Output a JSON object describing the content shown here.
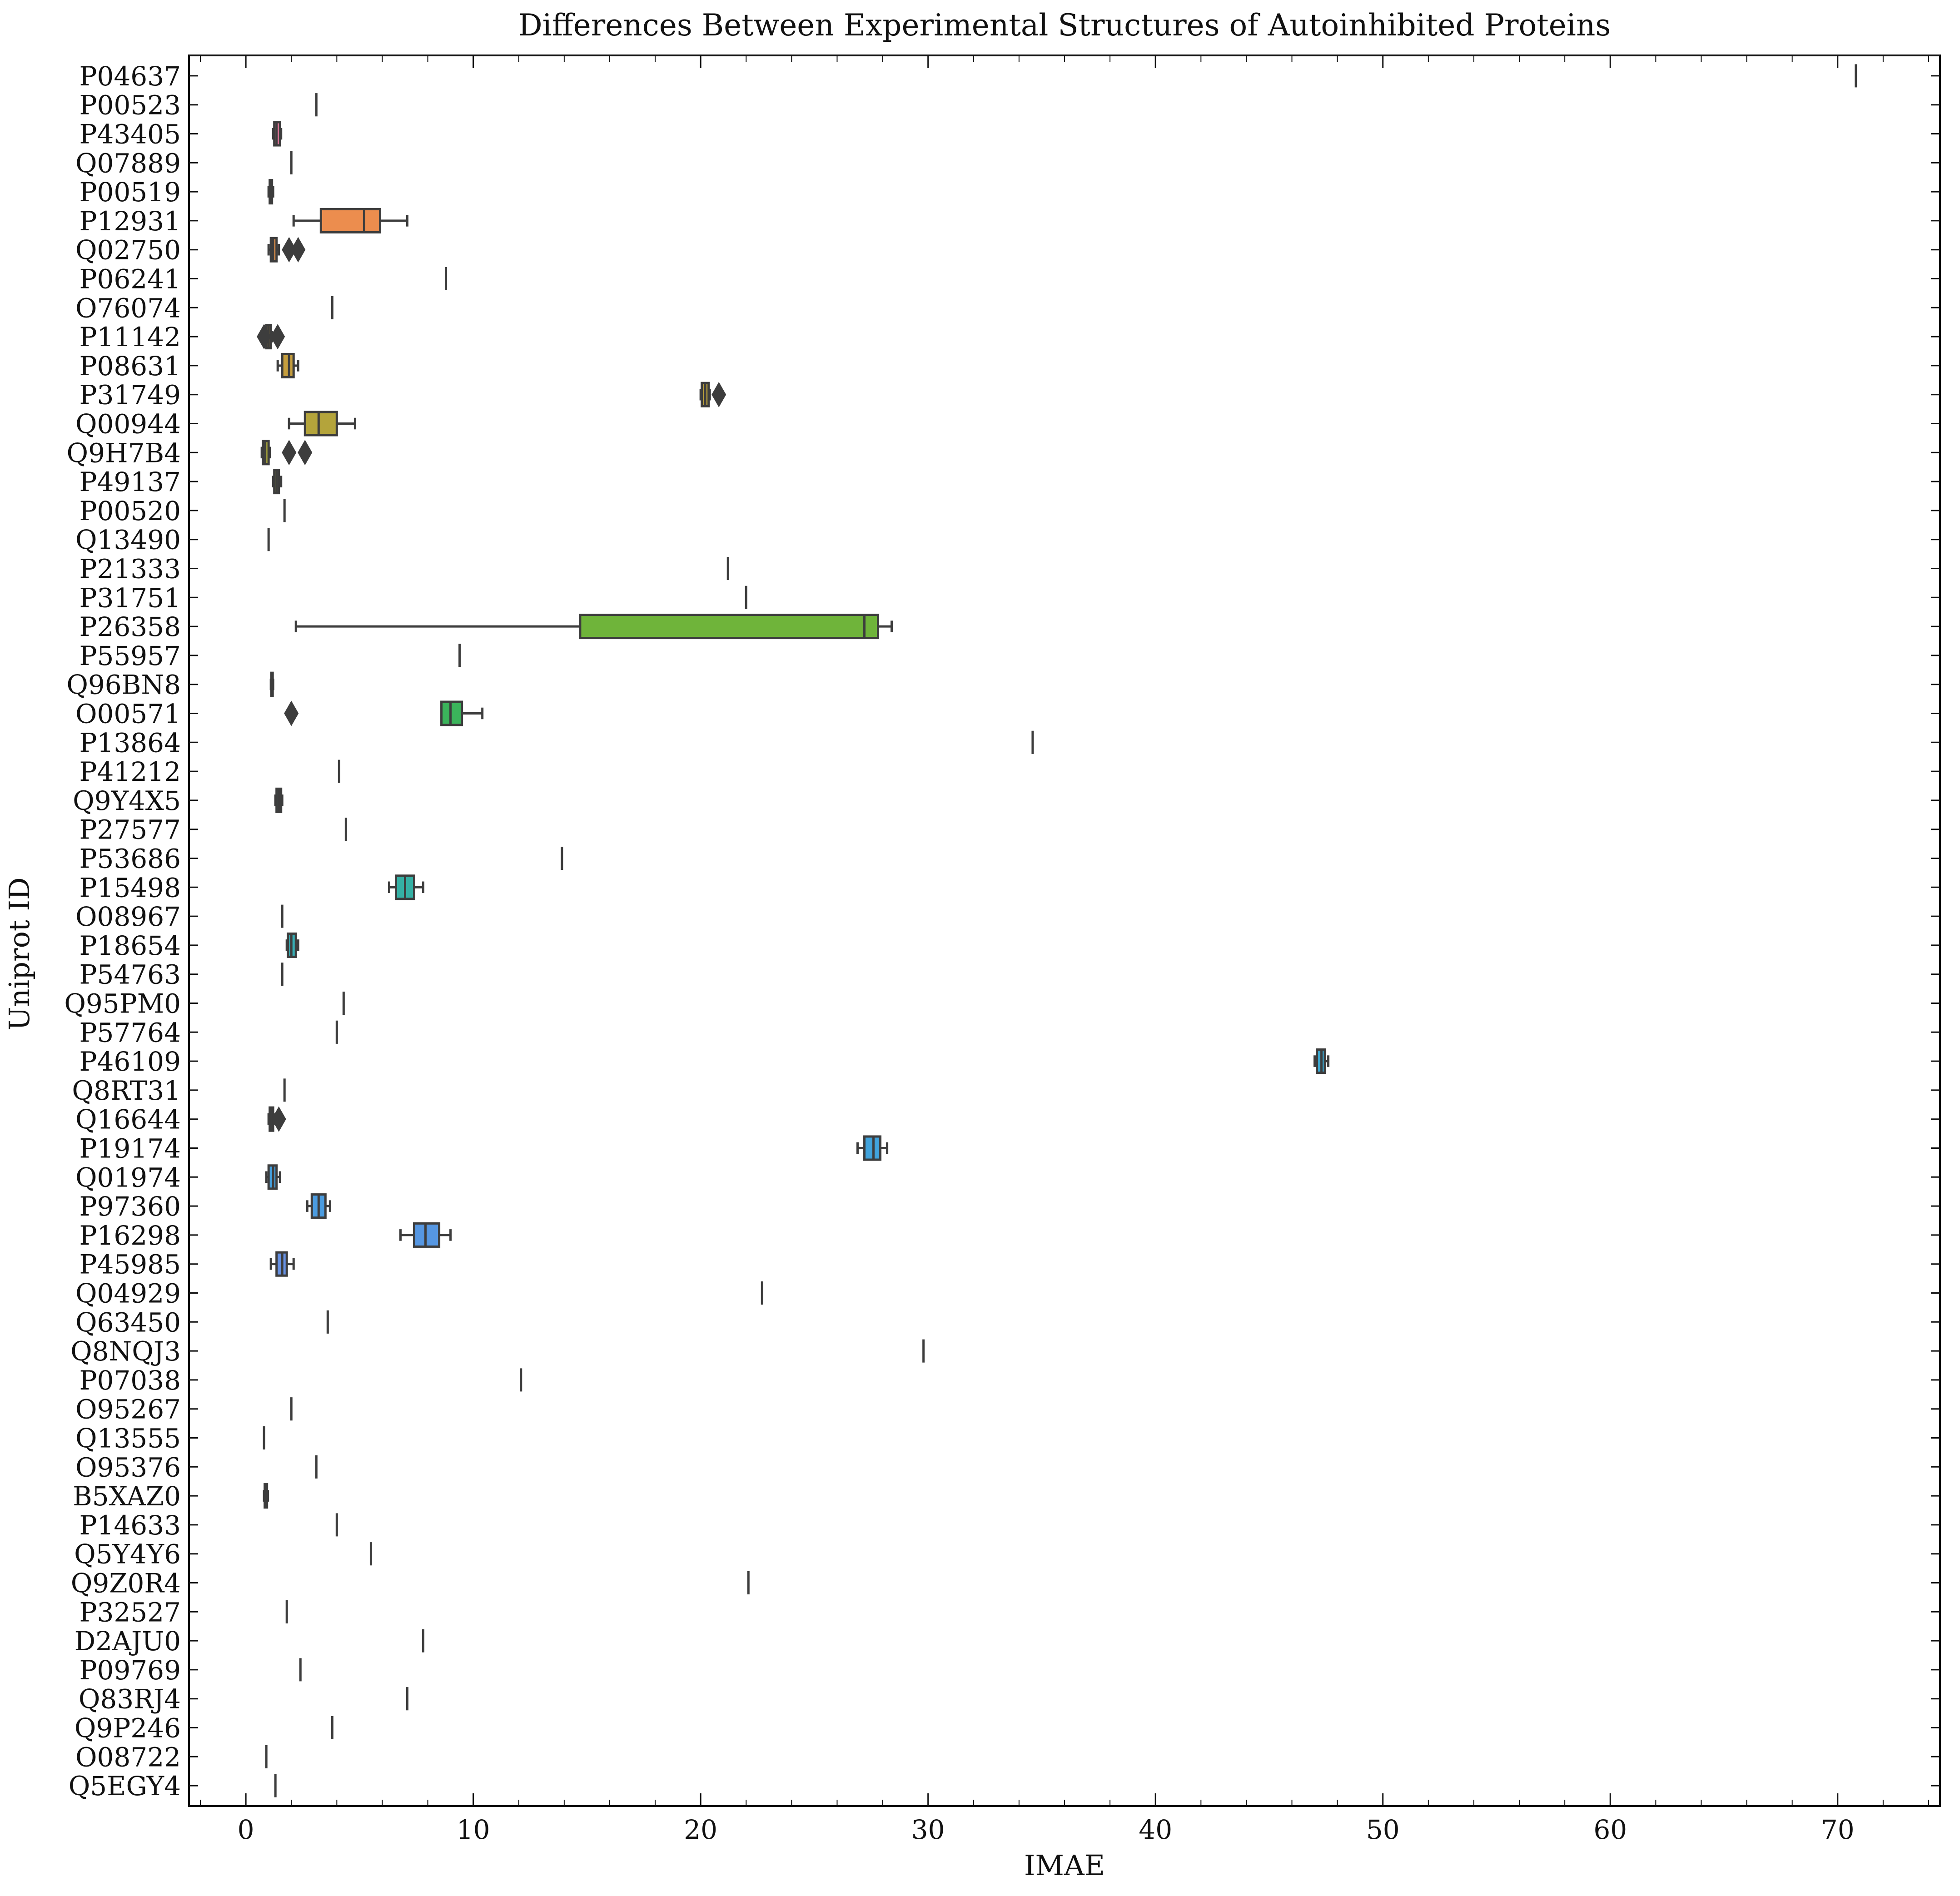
{
  "chart_data": {
    "type": "box",
    "orientation": "horizontal",
    "title": "Differences Between Experimental Structures of Autoinhibited Proteins",
    "xlabel": "IMAE",
    "ylabel": "Uniprot ID",
    "xlim": [
      -2.5,
      74.5
    ],
    "xticks": [
      0,
      10,
      20,
      30,
      40,
      50,
      60,
      70
    ],
    "xtick_labels": [
      "0",
      "10",
      "20",
      "30",
      "40",
      "50",
      "60",
      "70"
    ],
    "grid": false,
    "categories": [
      {
        "id": "P04637",
        "min": 70.8,
        "q1": 70.8,
        "median": 70.8,
        "q3": 70.8,
        "max": 70.8,
        "outliers": [],
        "color": "#3b9ad8"
      },
      {
        "id": "P00523",
        "min": 3.1,
        "q1": 3.1,
        "median": 3.1,
        "q3": 3.1,
        "max": 3.1,
        "outliers": [],
        "color": "#3b9ad8"
      },
      {
        "id": "P43405",
        "min": 1.2,
        "q1": 1.25,
        "median": 1.35,
        "q3": 1.5,
        "max": 1.55,
        "outliers": [],
        "color": "#f07ba3"
      },
      {
        "id": "Q07889",
        "min": 2.0,
        "q1": 2.0,
        "median": 2.0,
        "q3": 2.0,
        "max": 2.0,
        "outliers": [],
        "color": "#f07ba3"
      },
      {
        "id": "P00519",
        "min": 1.0,
        "q1": 1.05,
        "median": 1.1,
        "q3": 1.15,
        "max": 1.2,
        "outliers": [],
        "color": "#f07ba3"
      },
      {
        "id": "P12931",
        "min": 2.1,
        "q1": 3.3,
        "median": 5.2,
        "q3": 5.9,
        "max": 7.1,
        "outliers": [],
        "color": "#ec8d4e"
      },
      {
        "id": "Q02750",
        "min": 1.0,
        "q1": 1.1,
        "median": 1.2,
        "q3": 1.35,
        "max": 1.45,
        "outliers": [
          1.9,
          2.3
        ],
        "color": "#e4924a"
      },
      {
        "id": "P06241",
        "min": 8.8,
        "q1": 8.8,
        "median": 8.8,
        "q3": 8.8,
        "max": 8.8,
        "outliers": [],
        "color": "#d9963f"
      },
      {
        "id": "O76074",
        "min": 3.8,
        "q1": 3.8,
        "median": 3.8,
        "q3": 3.8,
        "max": 3.8,
        "outliers": [],
        "color": "#d49a40"
      },
      {
        "id": "P11142",
        "min": 0.85,
        "q1": 0.9,
        "median": 1.0,
        "q3": 1.1,
        "max": 1.15,
        "outliers": [
          0.8,
          1.4
        ],
        "color": "#cc9c3f"
      },
      {
        "id": "P08631",
        "min": 1.4,
        "q1": 1.6,
        "median": 1.9,
        "q3": 2.1,
        "max": 2.3,
        "outliers": [],
        "color": "#c59e3e"
      },
      {
        "id": "P31749",
        "min": 20.0,
        "q1": 20.05,
        "median": 20.2,
        "q3": 20.35,
        "max": 20.4,
        "outliers": [
          20.8
        ],
        "color": "#bda23c"
      },
      {
        "id": "Q00944",
        "min": 1.9,
        "q1": 2.6,
        "median": 3.2,
        "q3": 4.0,
        "max": 4.8,
        "outliers": [],
        "color": "#b4a43b"
      },
      {
        "id": "Q9H7B4",
        "min": 0.7,
        "q1": 0.75,
        "median": 0.85,
        "q3": 1.0,
        "max": 1.05,
        "outliers": [
          1.9,
          2.6
        ],
        "color": "#aaa73a"
      },
      {
        "id": "P49137",
        "min": 1.2,
        "q1": 1.25,
        "median": 1.35,
        "q3": 1.45,
        "max": 1.55,
        "outliers": [],
        "color": "#a1a939"
      },
      {
        "id": "P00520",
        "min": 1.7,
        "q1": 1.7,
        "median": 1.7,
        "q3": 1.7,
        "max": 1.7,
        "outliers": [],
        "color": "#98ab38"
      },
      {
        "id": "Q13490",
        "min": 1.0,
        "q1": 1.0,
        "median": 1.0,
        "q3": 1.0,
        "max": 1.0,
        "outliers": [],
        "color": "#8ead37"
      },
      {
        "id": "P21333",
        "min": 21.2,
        "q1": 21.2,
        "median": 21.2,
        "q3": 21.2,
        "max": 21.2,
        "outliers": [],
        "color": "#83b037"
      },
      {
        "id": "P31751",
        "min": 22.0,
        "q1": 22.0,
        "median": 22.0,
        "q3": 22.0,
        "max": 22.0,
        "outliers": [],
        "color": "#78b136"
      },
      {
        "id": "P26358",
        "min": 2.2,
        "q1": 14.7,
        "median": 27.2,
        "q3": 27.8,
        "max": 28.4,
        "outliers": [],
        "color": "#6fb43a"
      },
      {
        "id": "P55957",
        "min": 9.4,
        "q1": 9.4,
        "median": 9.4,
        "q3": 9.4,
        "max": 9.4,
        "outliers": [],
        "color": "#5fb744"
      },
      {
        "id": "Q96BN8",
        "min": 1.1,
        "q1": 1.12,
        "median": 1.15,
        "q3": 1.18,
        "max": 1.2,
        "outliers": [],
        "color": "#4fb84f"
      },
      {
        "id": "O00571",
        "min": 8.6,
        "q1": 8.6,
        "median": 9.0,
        "q3": 9.5,
        "max": 10.4,
        "outliers": [
          2.0
        ],
        "color": "#3bb45b"
      },
      {
        "id": "P13864",
        "min": 34.6,
        "q1": 34.6,
        "median": 34.6,
        "q3": 34.6,
        "max": 34.6,
        "outliers": [],
        "color": "#36b36b"
      },
      {
        "id": "P41212",
        "min": 4.1,
        "q1": 4.1,
        "median": 4.1,
        "q3": 4.1,
        "max": 4.1,
        "outliers": [],
        "color": "#35b37a"
      },
      {
        "id": "Q9Y4X5",
        "min": 1.3,
        "q1": 1.35,
        "median": 1.45,
        "q3": 1.55,
        "max": 1.6,
        "outliers": [],
        "color": "#34b386"
      },
      {
        "id": "P27577",
        "min": 4.4,
        "q1": 4.4,
        "median": 4.4,
        "q3": 4.4,
        "max": 4.4,
        "outliers": [],
        "color": "#34b290"
      },
      {
        "id": "P53686",
        "min": 13.9,
        "q1": 13.9,
        "median": 13.9,
        "q3": 13.9,
        "max": 13.9,
        "outliers": [],
        "color": "#35b19a"
      },
      {
        "id": "P15498",
        "min": 6.3,
        "q1": 6.6,
        "median": 7.0,
        "q3": 7.4,
        "max": 7.8,
        "outliers": [],
        "color": "#35b0a4"
      },
      {
        "id": "O08967",
        "min": 1.6,
        "q1": 1.6,
        "median": 1.6,
        "q3": 1.6,
        "max": 1.6,
        "outliers": [],
        "color": "#36afad"
      },
      {
        "id": "P18654",
        "min": 1.8,
        "q1": 1.85,
        "median": 2.0,
        "q3": 2.2,
        "max": 2.3,
        "outliers": [],
        "color": "#37aeb5"
      },
      {
        "id": "P54763",
        "min": 1.6,
        "q1": 1.6,
        "median": 1.6,
        "q3": 1.6,
        "max": 1.6,
        "outliers": [],
        "color": "#38adbd"
      },
      {
        "id": "Q95PM0",
        "min": 4.3,
        "q1": 4.3,
        "median": 4.3,
        "q3": 4.3,
        "max": 4.3,
        "outliers": [],
        "color": "#39acc4"
      },
      {
        "id": "P57764",
        "min": 4.0,
        "q1": 4.0,
        "median": 4.0,
        "q3": 4.0,
        "max": 4.0,
        "outliers": [],
        "color": "#3aabcc"
      },
      {
        "id": "P46109",
        "min": 47.0,
        "q1": 47.1,
        "median": 47.3,
        "q3": 47.45,
        "max": 47.6,
        "outliers": [],
        "color": "#3ba9d2"
      },
      {
        "id": "Q8RT31",
        "min": 1.7,
        "q1": 1.7,
        "median": 1.7,
        "q3": 1.7,
        "max": 1.7,
        "outliers": [],
        "color": "#3ca8d6"
      },
      {
        "id": "Q16644",
        "min": 1.0,
        "q1": 1.05,
        "median": 1.1,
        "q3": 1.2,
        "max": 1.25,
        "outliers": [
          1.45
        ],
        "color": "#3ea6da"
      },
      {
        "id": "P19174",
        "min": 26.9,
        "q1": 27.2,
        "median": 27.6,
        "q3": 27.9,
        "max": 28.2,
        "outliers": [],
        "color": "#41a3dc"
      },
      {
        "id": "Q01974",
        "min": 0.9,
        "q1": 1.0,
        "median": 1.2,
        "q3": 1.35,
        "max": 1.5,
        "outliers": [],
        "color": "#45a0de"
      },
      {
        "id": "P97360",
        "min": 2.7,
        "q1": 2.9,
        "median": 3.2,
        "q3": 3.5,
        "max": 3.7,
        "outliers": [],
        "color": "#4b9ce0"
      },
      {
        "id": "P16298",
        "min": 6.8,
        "q1": 7.4,
        "median": 7.9,
        "q3": 8.5,
        "max": 9.0,
        "outliers": [],
        "color": "#5697e2"
      },
      {
        "id": "P45985",
        "min": 1.1,
        "q1": 1.35,
        "median": 1.6,
        "q3": 1.8,
        "max": 2.1,
        "outliers": [],
        "color": "#6792e4"
      },
      {
        "id": "Q04929",
        "min": 22.7,
        "q1": 22.7,
        "median": 22.7,
        "q3": 22.7,
        "max": 22.7,
        "outliers": [],
        "color": "#7a8ce5"
      },
      {
        "id": "Q63450",
        "min": 3.6,
        "q1": 3.6,
        "median": 3.6,
        "q3": 3.6,
        "max": 3.6,
        "outliers": [],
        "color": "#8d87e5"
      },
      {
        "id": "Q8NQJ3",
        "min": 29.8,
        "q1": 29.8,
        "median": 29.8,
        "q3": 29.8,
        "max": 29.8,
        "outliers": [],
        "color": "#9f82e4"
      },
      {
        "id": "P07038",
        "min": 12.1,
        "q1": 12.1,
        "median": 12.1,
        "q3": 12.1,
        "max": 12.1,
        "outliers": [],
        "color": "#ae7de3"
      },
      {
        "id": "O95267",
        "min": 2.0,
        "q1": 2.0,
        "median": 2.0,
        "q3": 2.0,
        "max": 2.0,
        "outliers": [],
        "color": "#bc78e1"
      },
      {
        "id": "Q13555",
        "min": 0.8,
        "q1": 0.8,
        "median": 0.8,
        "q3": 0.8,
        "max": 0.8,
        "outliers": [],
        "color": "#c874de"
      },
      {
        "id": "O95376",
        "min": 3.1,
        "q1": 3.1,
        "median": 3.1,
        "q3": 3.1,
        "max": 3.1,
        "outliers": [],
        "color": "#d270da"
      },
      {
        "id": "B5XAZ0",
        "min": 0.8,
        "q1": 0.83,
        "median": 0.88,
        "q3": 0.93,
        "max": 0.97,
        "outliers": [],
        "color": "#db6dd3"
      },
      {
        "id": "P14633",
        "min": 4.0,
        "q1": 4.0,
        "median": 4.0,
        "q3": 4.0,
        "max": 4.0,
        "outliers": [],
        "color": "#e36bcb"
      },
      {
        "id": "Q5Y4Y6",
        "min": 5.5,
        "q1": 5.5,
        "median": 5.5,
        "q3": 5.5,
        "max": 5.5,
        "outliers": [],
        "color": "#e86ac2"
      },
      {
        "id": "Q9Z0R4",
        "min": 22.1,
        "q1": 22.1,
        "median": 22.1,
        "q3": 22.1,
        "max": 22.1,
        "outliers": [],
        "color": "#ec6bb8"
      },
      {
        "id": "P32527",
        "min": 1.8,
        "q1": 1.8,
        "median": 1.8,
        "q3": 1.8,
        "max": 1.8,
        "outliers": [],
        "color": "#ef6cae"
      },
      {
        "id": "D2AJU0",
        "min": 7.8,
        "q1": 7.8,
        "median": 7.8,
        "q3": 7.8,
        "max": 7.8,
        "outliers": [],
        "color": "#f06ea4"
      },
      {
        "id": "P09769",
        "min": 2.4,
        "q1": 2.4,
        "median": 2.4,
        "q3": 2.4,
        "max": 2.4,
        "outliers": [],
        "color": "#f1709a"
      },
      {
        "id": "Q83RJ4",
        "min": 7.1,
        "q1": 7.1,
        "median": 7.1,
        "q3": 7.1,
        "max": 7.1,
        "outliers": [],
        "color": "#f27290"
      },
      {
        "id": "Q9P246",
        "min": 3.8,
        "q1": 3.8,
        "median": 3.8,
        "q3": 3.8,
        "max": 3.8,
        "outliers": [],
        "color": "#f27586"
      },
      {
        "id": "O08722",
        "min": 0.9,
        "q1": 0.9,
        "median": 0.9,
        "q3": 0.9,
        "max": 0.9,
        "outliers": [],
        "color": "#f3787c"
      },
      {
        "id": "Q5EGY4",
        "min": 1.3,
        "q1": 1.3,
        "median": 1.3,
        "q3": 1.3,
        "max": 1.3,
        "outliers": [],
        "color": "#f37b73"
      }
    ]
  }
}
